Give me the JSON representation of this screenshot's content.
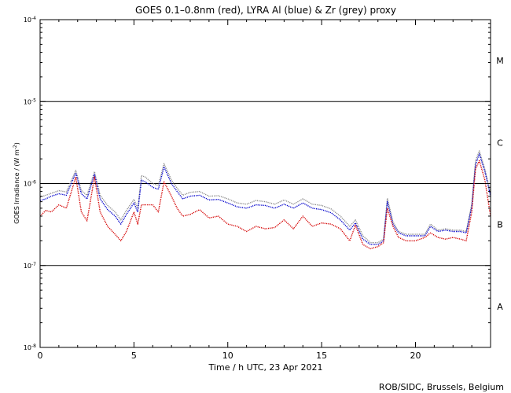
{
  "chart_data": {
    "type": "line",
    "title": "GOES 0.1–0.8nm (red), LYRA Al (blue) & Zr (grey) proxy",
    "xlabel": "Time / h UTC, 23 Apr 2021",
    "ylabel_main": "GOES Irradiance / (W m",
    "ylabel_exp": "-2",
    "ylabel_close": ")",
    "y_scale": "log",
    "xlim": [
      0,
      24
    ],
    "ylim": [
      1e-08,
      0.0001
    ],
    "x_ticks": [
      {
        "value": 0,
        "label": "0"
      },
      {
        "value": 5,
        "label": "5"
      },
      {
        "value": 10,
        "label": "10"
      },
      {
        "value": 15,
        "label": "15"
      },
      {
        "value": 20,
        "label": "20"
      }
    ],
    "y_ticks": [
      {
        "exp": -8,
        "base": "10",
        "sup": "-8"
      },
      {
        "exp": -7,
        "base": "10",
        "sup": "-7"
      },
      {
        "exp": -6,
        "base": "10",
        "sup": "-6"
      },
      {
        "exp": -5,
        "base": "10",
        "sup": "-5"
      },
      {
        "exp": -4,
        "base": "10",
        "sup": "-4"
      }
    ],
    "flare_classes": [
      {
        "label": "A",
        "exp": -7.5
      },
      {
        "label": "B",
        "exp": -6.5
      },
      {
        "label": "C",
        "exp": -5.5
      },
      {
        "label": "M",
        "exp": -4.5
      }
    ],
    "reference_lines": [
      1e-07,
      1e-06,
      1e-05
    ],
    "x": [
      0,
      0.3,
      0.6,
      1.0,
      1.4,
      1.9,
      2.2,
      2.5,
      2.9,
      3.2,
      3.6,
      4.0,
      4.3,
      4.6,
      5.0,
      5.2,
      5.4,
      5.6,
      6.0,
      6.3,
      6.6,
      7.0,
      7.3,
      7.6,
      8.0,
      8.5,
      9.0,
      9.5,
      10.0,
      10.5,
      11.0,
      11.5,
      12.0,
      12.5,
      13.0,
      13.5,
      14.0,
      14.5,
      15.0,
      15.5,
      16.0,
      16.5,
      16.8,
      17.2,
      17.6,
      18.0,
      18.3,
      18.5,
      18.8,
      19.1,
      19.5,
      20.0,
      20.5,
      20.8,
      21.2,
      21.6,
      22.0,
      22.4,
      22.7,
      23.0,
      23.2,
      23.4,
      23.7,
      24.0
    ],
    "series": [
      {
        "name": "GOES 0.1–0.8nm",
        "color": "#d40000",
        "values": [
          4e-07,
          4.7e-07,
          4.5e-07,
          5.5e-07,
          5e-07,
          1.2e-06,
          4.5e-07,
          3.5e-07,
          1.2e-06,
          4.5e-07,
          3e-07,
          2.4e-07,
          2e-07,
          2.6e-07,
          4.5e-07,
          3.2e-07,
          5.5e-07,
          5.5e-07,
          5.5e-07,
          4.5e-07,
          1.05e-06,
          7e-07,
          5e-07,
          4e-07,
          4.2e-07,
          4.8e-07,
          3.8e-07,
          4e-07,
          3.2e-07,
          3e-07,
          2.6e-07,
          3e-07,
          2.8e-07,
          2.9e-07,
          3.6e-07,
          2.8e-07,
          4e-07,
          3e-07,
          3.3e-07,
          3.2e-07,
          2.8e-07,
          2e-07,
          3.1e-07,
          1.8e-07,
          1.6e-07,
          1.7e-07,
          1.9e-07,
          5e-07,
          3e-07,
          2.2e-07,
          2e-07,
          2e-07,
          2.2e-07,
          2.5e-07,
          2.2e-07,
          2.1e-07,
          2.2e-07,
          2.1e-07,
          2e-07,
          4.5e-07,
          1.5e-06,
          1.9e-06,
          1.1e-06,
          4e-07
        ]
      },
      {
        "name": "LYRA Al proxy",
        "color": "#0000cc",
        "values": [
          6.2e-07,
          6.5e-07,
          7e-07,
          7.5e-07,
          7.2e-07,
          1.35e-06,
          7.5e-07,
          6.5e-07,
          1.3e-06,
          6.5e-07,
          4.8e-07,
          4e-07,
          3.2e-07,
          4.2e-07,
          5.8e-07,
          4.5e-07,
          1.1e-06,
          1.05e-06,
          9e-07,
          8.5e-07,
          1.6e-06,
          1e-06,
          8e-07,
          6.5e-07,
          7e-07,
          7.2e-07,
          6.3e-07,
          6.4e-07,
          5.8e-07,
          5.2e-07,
          5e-07,
          5.5e-07,
          5.4e-07,
          5e-07,
          5.6e-07,
          5e-07,
          5.8e-07,
          5e-07,
          4.8e-07,
          4.4e-07,
          3.6e-07,
          2.7e-07,
          3.3e-07,
          2.1e-07,
          1.8e-07,
          1.8e-07,
          2e-07,
          6e-07,
          3.2e-07,
          2.5e-07,
          2.3e-07,
          2.3e-07,
          2.3e-07,
          3e-07,
          2.6e-07,
          2.7e-07,
          2.6e-07,
          2.6e-07,
          2.5e-07,
          5.2e-07,
          1.7e-06,
          2.3e-06,
          1.4e-06,
          7e-07
        ]
      },
      {
        "name": "LYRA Zr proxy",
        "color": "#8c8c8c",
        "values": [
          6.8e-07,
          7.2e-07,
          7.6e-07,
          8.2e-07,
          7.9e-07,
          1.45e-06,
          8.2e-07,
          7.2e-07,
          1.4e-06,
          7.2e-07,
          5.4e-07,
          4.5e-07,
          3.6e-07,
          4.7e-07,
          6.4e-07,
          5e-07,
          1.25e-06,
          1.2e-06,
          1e-06,
          9.5e-07,
          1.75e-06,
          1.1e-06,
          8.8e-07,
          7.2e-07,
          7.8e-07,
          8e-07,
          7e-07,
          7.1e-07,
          6.5e-07,
          5.8e-07,
          5.6e-07,
          6.2e-07,
          6e-07,
          5.6e-07,
          6.3e-07,
          5.6e-07,
          6.5e-07,
          5.6e-07,
          5.4e-07,
          4.9e-07,
          4e-07,
          3e-07,
          3.6e-07,
          2.3e-07,
          1.9e-07,
          1.9e-07,
          2.1e-07,
          6.6e-07,
          3.4e-07,
          2.6e-07,
          2.4e-07,
          2.4e-07,
          2.4e-07,
          3.2e-07,
          2.7e-07,
          2.8e-07,
          2.7e-07,
          2.7e-07,
          2.6e-07,
          5.6e-07,
          1.9e-06,
          2.5e-06,
          1.5e-06,
          7.6e-07
        ]
      }
    ],
    "credit": "ROB/SIDC, Brussels, Belgium"
  }
}
